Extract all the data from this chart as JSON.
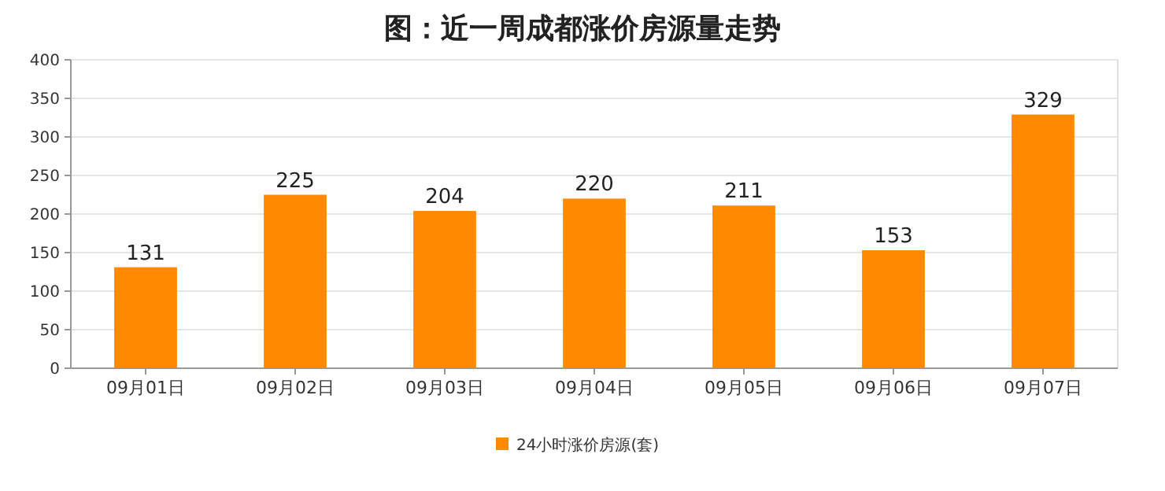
{
  "chart_data": {
    "type": "bar",
    "title": "图：近一周成都涨价房源量走势",
    "categories": [
      "09月01日",
      "09月02日",
      "09月03日",
      "09月04日",
      "09月05日",
      "09月06日",
      "09月07日"
    ],
    "series": [
      {
        "name": "24小时涨价房源(套)",
        "color": "#ff8a00",
        "values": [
          131,
          225,
          204,
          220,
          211,
          153,
          329
        ]
      }
    ],
    "ylim": [
      0,
      400
    ],
    "yticks": [
      0,
      50,
      100,
      150,
      200,
      250,
      300,
      350,
      400
    ],
    "grid": "y",
    "legend": "bottom",
    "data_labels": true
  }
}
